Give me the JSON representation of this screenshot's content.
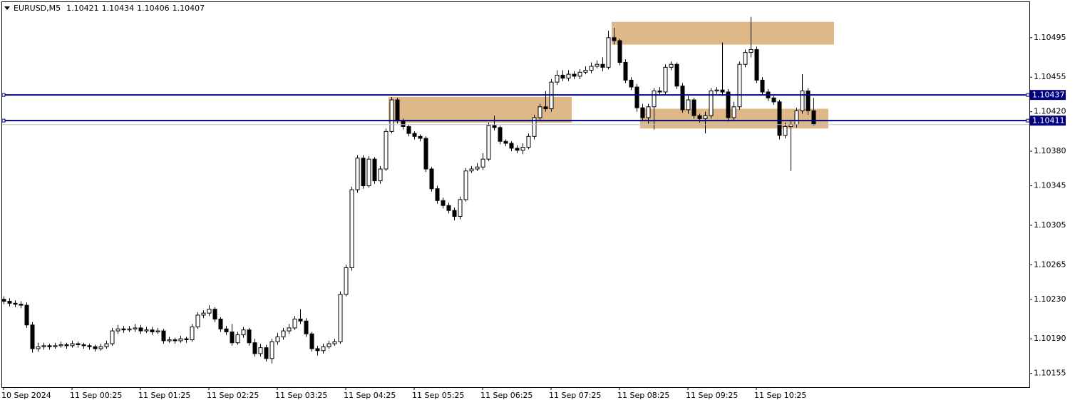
{
  "chart_data": {
    "type": "candlestick",
    "title": "EURUSD,M5",
    "categories": [
      "10 Sep 2024",
      null,
      null,
      null,
      null,
      null,
      null,
      null,
      null,
      null,
      null,
      null,
      "11 Sep 00:25",
      null,
      null,
      null,
      null,
      null,
      null,
      null,
      null,
      null,
      null,
      null,
      "11 Sep 01:25",
      null,
      null,
      null,
      null,
      null,
      null,
      null,
      null,
      null,
      null,
      null,
      "11 Sep 02:25",
      null,
      null,
      null,
      null,
      null,
      null,
      null,
      null,
      null,
      null,
      null,
      "11 Sep 03:25",
      null,
      null,
      null,
      null,
      null,
      null,
      null,
      null,
      null,
      null,
      null,
      "11 Sep 04:25",
      null,
      null,
      null,
      null,
      null,
      null,
      null,
      null,
      null,
      null,
      null,
      "11 Sep 05:25",
      null,
      null,
      null,
      null,
      null,
      null,
      null,
      null,
      null,
      null,
      null,
      "11 Sep 06:25",
      null,
      null,
      null,
      null,
      null,
      null,
      null,
      null,
      null,
      null,
      null,
      "11 Sep 07:25",
      null,
      null,
      null,
      null,
      null,
      null,
      null,
      null,
      null,
      null,
      null,
      "11 Sep 08:25",
      null,
      null,
      null,
      null,
      null,
      null,
      null,
      null,
      null,
      null,
      null,
      "11 Sep 09:25",
      null,
      null,
      null,
      null,
      null,
      null,
      null,
      null,
      null,
      null,
      null,
      "11 Sep 10:25",
      null,
      null,
      null,
      null,
      null,
      null,
      null,
      null,
      null,
      null
    ],
    "ohlc": [
      [
        1.1023,
        1.10233,
        1.10225,
        1.10228
      ],
      [
        1.10228,
        1.10231,
        1.10223,
        1.10226
      ],
      [
        1.10226,
        1.10229,
        1.10222,
        1.10225
      ],
      [
        1.10225,
        1.10228,
        1.10221,
        1.10224
      ],
      [
        1.10224,
        1.10227,
        1.10201,
        1.10204
      ],
      [
        1.10204,
        1.10207,
        1.10176,
        1.1018
      ],
      [
        1.1018,
        1.10186,
        1.10177,
        1.10182
      ],
      [
        1.10182,
        1.10186,
        1.10179,
        1.10183
      ],
      [
        1.10183,
        1.10185,
        1.10179,
        1.10182
      ],
      [
        1.10182,
        1.10186,
        1.1018,
        1.10183
      ],
      [
        1.10183,
        1.10187,
        1.10181,
        1.10184
      ],
      [
        1.10184,
        1.10186,
        1.1018,
        1.10183
      ],
      [
        1.10183,
        1.10188,
        1.10181,
        1.10185
      ],
      [
        1.10185,
        1.10187,
        1.10181,
        1.10184
      ],
      [
        1.10184,
        1.10186,
        1.1018,
        1.10183
      ],
      [
        1.10183,
        1.10185,
        1.10179,
        1.10182
      ],
      [
        1.10182,
        1.10184,
        1.10177,
        1.1018
      ],
      [
        1.1018,
        1.10185,
        1.10178,
        1.10182
      ],
      [
        1.10182,
        1.10188,
        1.1018,
        1.10185
      ],
      [
        1.10185,
        1.10201,
        1.10183,
        1.10198
      ],
      [
        1.10198,
        1.10204,
        1.10195,
        1.102
      ],
      [
        1.102,
        1.10203,
        1.10196,
        1.10199
      ],
      [
        1.10199,
        1.10203,
        1.10197,
        1.102
      ],
      [
        1.102,
        1.10205,
        1.10197,
        1.10201
      ],
      [
        1.10201,
        1.10204,
        1.10195,
        1.10198
      ],
      [
        1.10198,
        1.10202,
        1.10196,
        1.10199
      ],
      [
        1.10199,
        1.10202,
        1.10194,
        1.10197
      ],
      [
        1.10197,
        1.10201,
        1.10195,
        1.10198
      ],
      [
        1.10198,
        1.102,
        1.10185,
        1.10188
      ],
      [
        1.10188,
        1.10192,
        1.10186,
        1.10189
      ],
      [
        1.10189,
        1.10191,
        1.10185,
        1.10188
      ],
      [
        1.10188,
        1.10193,
        1.10186,
        1.1019
      ],
      [
        1.1019,
        1.10192,
        1.10186,
        1.10189
      ],
      [
        1.10189,
        1.10205,
        1.10187,
        1.10202
      ],
      [
        1.10202,
        1.10217,
        1.102,
        1.10214
      ],
      [
        1.10214,
        1.10219,
        1.10211,
        1.10216
      ],
      [
        1.10216,
        1.10224,
        1.10213,
        1.1022
      ],
      [
        1.1022,
        1.10222,
        1.10207,
        1.1021
      ],
      [
        1.1021,
        1.10212,
        1.10197,
        1.102
      ],
      [
        1.102,
        1.10203,
        1.10194,
        1.10197
      ],
      [
        1.10197,
        1.10205,
        1.10183,
        1.10186
      ],
      [
        1.10186,
        1.10197,
        1.10184,
        1.10194
      ],
      [
        1.10194,
        1.10202,
        1.10191,
        1.10199
      ],
      [
        1.10199,
        1.10201,
        1.10183,
        1.10186
      ],
      [
        1.10186,
        1.1019,
        1.10172,
        1.10175
      ],
      [
        1.10175,
        1.10185,
        1.10172,
        1.10181
      ],
      [
        1.10181,
        1.10184,
        1.10167,
        1.1017
      ],
      [
        1.1017,
        1.1019,
        1.10165,
        1.10187
      ],
      [
        1.10187,
        1.10196,
        1.10184,
        1.10192
      ],
      [
        1.10192,
        1.10201,
        1.10189,
        1.10198
      ],
      [
        1.10198,
        1.10205,
        1.10195,
        1.10201
      ],
      [
        1.10201,
        1.10213,
        1.10199,
        1.1021
      ],
      [
        1.1021,
        1.1022,
        1.10205,
        1.10208
      ],
      [
        1.10208,
        1.10211,
        1.10192,
        1.10195
      ],
      [
        1.10195,
        1.10197,
        1.10177,
        1.1018
      ],
      [
        1.1018,
        1.10183,
        1.10173,
        1.10178
      ],
      [
        1.10178,
        1.10185,
        1.10175,
        1.10182
      ],
      [
        1.10182,
        1.10188,
        1.1018,
        1.10185
      ],
      [
        1.10185,
        1.1019,
        1.10183,
        1.10187
      ],
      [
        1.10187,
        1.10238,
        1.10185,
        1.10235
      ],
      [
        1.10235,
        1.10265,
        1.10233,
        1.10262
      ],
      [
        1.10262,
        1.10344,
        1.10259,
        1.10341
      ],
      [
        1.10341,
        1.10376,
        1.10338,
        1.10373
      ],
      [
        1.10373,
        1.10376,
        1.10342,
        1.10345
      ],
      [
        1.10345,
        1.10375,
        1.10343,
        1.10372
      ],
      [
        1.10372,
        1.10374,
        1.10347,
        1.1035
      ],
      [
        1.1035,
        1.10365,
        1.10347,
        1.10362
      ],
      [
        1.10362,
        1.10403,
        1.1036,
        1.104
      ],
      [
        1.104,
        1.10435,
        1.10398,
        1.10432
      ],
      [
        1.10432,
        1.10434,
        1.10408,
        1.10411
      ],
      [
        1.10411,
        1.10413,
        1.10402,
        1.10405
      ],
      [
        1.10405,
        1.10407,
        1.10395,
        1.10398
      ],
      [
        1.10398,
        1.104,
        1.10392,
        1.10395
      ],
      [
        1.10395,
        1.10397,
        1.1039,
        1.10393
      ],
      [
        1.10393,
        1.10395,
        1.10359,
        1.10362
      ],
      [
        1.10362,
        1.10364,
        1.10339,
        1.10342
      ],
      [
        1.10342,
        1.10345,
        1.10327,
        1.1033
      ],
      [
        1.1033,
        1.10333,
        1.10322,
        1.10325
      ],
      [
        1.10325,
        1.10328,
        1.10317,
        1.1032
      ],
      [
        1.1032,
        1.10323,
        1.1031,
        1.10314
      ],
      [
        1.10314,
        1.10334,
        1.10311,
        1.10331
      ],
      [
        1.10331,
        1.10363,
        1.10329,
        1.1036
      ],
      [
        1.1036,
        1.10365,
        1.10358,
        1.10362
      ],
      [
        1.10362,
        1.10368,
        1.1036,
        1.10364
      ],
      [
        1.10364,
        1.10378,
        1.10361,
        1.10372
      ],
      [
        1.10372,
        1.10409,
        1.1037,
        1.10406
      ],
      [
        1.10406,
        1.10416,
        1.10401,
        1.10404
      ],
      [
        1.10404,
        1.10406,
        1.10387,
        1.1039
      ],
      [
        1.1039,
        1.10392,
        1.10385,
        1.10388
      ],
      [
        1.10388,
        1.1039,
        1.1038,
        1.10383
      ],
      [
        1.10383,
        1.10386,
        1.10378,
        1.10381
      ],
      [
        1.10381,
        1.10388,
        1.10377,
        1.10384
      ],
      [
        1.10384,
        1.10398,
        1.10382,
        1.10395
      ],
      [
        1.10395,
        1.10417,
        1.10392,
        1.10414
      ],
      [
        1.10414,
        1.10428,
        1.10411,
        1.10425
      ],
      [
        1.10425,
        1.10441,
        1.1042,
        1.10423
      ],
      [
        1.10423,
        1.10453,
        1.1042,
        1.1045
      ],
      [
        1.1045,
        1.10462,
        1.10447,
        1.10457
      ],
      [
        1.10457,
        1.10462,
        1.10451,
        1.10454
      ],
      [
        1.10454,
        1.10462,
        1.10451,
        1.10458
      ],
      [
        1.10458,
        1.10461,
        1.10453,
        1.10456
      ],
      [
        1.10456,
        1.10463,
        1.10453,
        1.1046
      ],
      [
        1.1046,
        1.10466,
        1.10458,
        1.10462
      ],
      [
        1.10462,
        1.1047,
        1.10459,
        1.10466
      ],
      [
        1.10466,
        1.10472,
        1.10464,
        1.10468
      ],
      [
        1.10468,
        1.10475,
        1.10461,
        1.10465
      ],
      [
        1.10465,
        1.10502,
        1.10463,
        1.10495
      ],
      [
        1.10495,
        1.10505,
        1.10488,
        1.10492
      ],
      [
        1.10492,
        1.10494,
        1.10467,
        1.1047
      ],
      [
        1.1047,
        1.10473,
        1.10449,
        1.10452
      ],
      [
        1.10452,
        1.10455,
        1.10442,
        1.10445
      ],
      [
        1.10445,
        1.10448,
        1.1042,
        1.10424
      ],
      [
        1.10424,
        1.10428,
        1.10411,
        1.10414
      ],
      [
        1.10414,
        1.10428,
        1.10408,
        1.10425
      ],
      [
        1.10425,
        1.10444,
        1.10402,
        1.10441
      ],
      [
        1.10441,
        1.10445,
        1.10436,
        1.1044
      ],
      [
        1.1044,
        1.10468,
        1.10437,
        1.10465
      ],
      [
        1.10465,
        1.10471,
        1.10462,
        1.10468
      ],
      [
        1.10468,
        1.1047,
        1.10443,
        1.10446
      ],
      [
        1.10446,
        1.10449,
        1.10419,
        1.10422
      ],
      [
        1.10422,
        1.10436,
        1.10418,
        1.10432
      ],
      [
        1.10432,
        1.10434,
        1.10413,
        1.10416
      ],
      [
        1.10416,
        1.10418,
        1.10409,
        1.10413
      ],
      [
        1.10413,
        1.1042,
        1.10398,
        1.10416
      ],
      [
        1.10416,
        1.10444,
        1.10413,
        1.10441
      ],
      [
        1.10441,
        1.10445,
        1.10438,
        1.10442
      ],
      [
        1.10442,
        1.1049,
        1.10436,
        1.1044
      ],
      [
        1.1044,
        1.10443,
        1.1041,
        1.10414
      ],
      [
        1.10414,
        1.1043,
        1.10411,
        1.10425
      ],
      [
        1.10425,
        1.10471,
        1.10422,
        1.10468
      ],
      [
        1.10468,
        1.10483,
        1.10465,
        1.1048
      ],
      [
        1.1048,
        1.10516,
        1.10475,
        1.10483
      ],
      [
        1.10483,
        1.10486,
        1.10449,
        1.10452
      ],
      [
        1.10452,
        1.10455,
        1.10437,
        1.1044
      ],
      [
        1.1044,
        1.10443,
        1.10431,
        1.10434
      ],
      [
        1.10434,
        1.10436,
        1.10427,
        1.1043
      ],
      [
        1.1043,
        1.10432,
        1.10392,
        1.10396
      ],
      [
        1.10396,
        1.10409,
        1.10393,
        1.10405
      ],
      [
        1.10405,
        1.10412,
        1.1036,
        1.10407
      ],
      [
        1.10407,
        1.10424,
        1.10404,
        1.10421
      ],
      [
        1.10421,
        1.10458,
        1.10418,
        1.10441
      ],
      [
        1.10441,
        1.10444,
        1.10417,
        1.10421
      ],
      [
        1.10421,
        1.10434,
        1.10406,
        1.10407
      ]
    ],
    "up_color": "#ffffff",
    "down_color": "#000000",
    "wick_color": "#000000",
    "ylim": [
      1.10141,
      1.10531
    ],
    "yticks": [
      1.10495,
      1.10455,
      {
        "value": 1.1042,
        "label": "1.10420"
      },
      {
        "value": 1.1038,
        "label": "1.10380"
      },
      1.10345,
      1.10305,
      1.10265,
      {
        "value": 1.1023,
        "label": "1.10230"
      },
      {
        "value": 1.1019,
        "label": "1.10190"
      },
      1.10155
    ],
    "price_lines": [
      {
        "value": 1.10437,
        "color": "#00007f"
      },
      {
        "value": 1.10411,
        "color": "#00007f"
      }
    ],
    "zones": [
      {
        "high": 1.10435,
        "low": 1.10409,
        "color": "#deb887"
      },
      {
        "high": 1.10511,
        "low": 1.10488,
        "color": "#deb887"
      },
      {
        "high": 1.10423,
        "low": 1.10403,
        "color": "#deb887"
      }
    ]
  }
}
